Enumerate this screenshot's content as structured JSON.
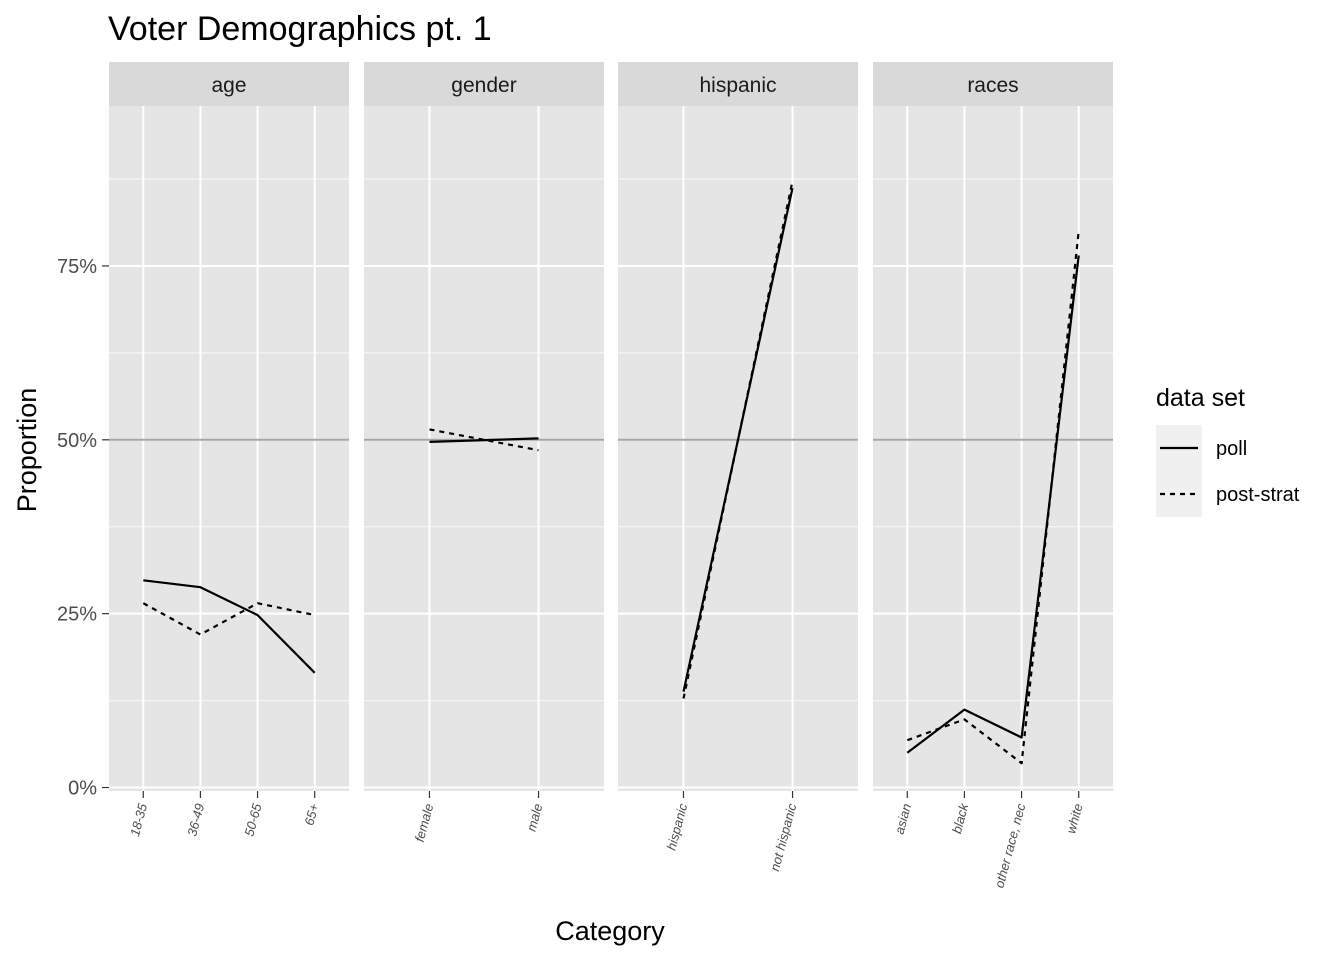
{
  "chart_data": {
    "type": "line",
    "title": "Voter Demographics pt. 1",
    "xlabel": "Category",
    "ylabel": "Proportion",
    "ylim": [
      -0.005,
      0.98
    ],
    "yticks": [
      0,
      0.25,
      0.5,
      0.75
    ],
    "ytick_labels": [
      "0%",
      "25%",
      "50%",
      "75%"
    ],
    "reference_line": 0.5,
    "grid": true,
    "legend": {
      "title": "data set",
      "position": "right",
      "entries": [
        {
          "label": "poll",
          "linetype": "solid"
        },
        {
          "label": "post-strat",
          "linetype": "dashed"
        }
      ]
    },
    "panels": [
      {
        "name": "age",
        "categories": [
          "18-35",
          "36-49",
          "50-65",
          "65+"
        ],
        "series": [
          {
            "name": "poll",
            "values": [
              0.298,
              0.288,
              0.248,
              0.165
            ]
          },
          {
            "name": "post-strat",
            "values": [
              0.265,
              0.22,
              0.265,
              0.248
            ]
          }
        ]
      },
      {
        "name": "gender",
        "categories": [
          "female",
          "male"
        ],
        "series": [
          {
            "name": "poll",
            "values": [
              0.497,
              0.502
            ]
          },
          {
            "name": "post-strat",
            "values": [
              0.515,
              0.485
            ]
          }
        ]
      },
      {
        "name": "hispanic",
        "categories": [
          "hispanic",
          "not hispanic"
        ],
        "series": [
          {
            "name": "poll",
            "values": [
              0.138,
              0.862
            ]
          },
          {
            "name": "post-strat",
            "values": [
              0.128,
              0.872
            ]
          }
        ]
      },
      {
        "name": "races",
        "categories": [
          "asian",
          "black",
          "other race, nec",
          "white"
        ],
        "series": [
          {
            "name": "poll",
            "values": [
              0.05,
              0.112,
              0.072,
              0.765
            ]
          },
          {
            "name": "post-strat",
            "values": [
              0.068,
              0.098,
              0.035,
              0.8
            ]
          }
        ]
      }
    ]
  },
  "colors": {
    "panel_background": "#e5e5e5",
    "grid_major": "#ffffff",
    "strip_background": "#d9d9d9",
    "reference_line": "#a6a6a6",
    "line": "#000000"
  }
}
